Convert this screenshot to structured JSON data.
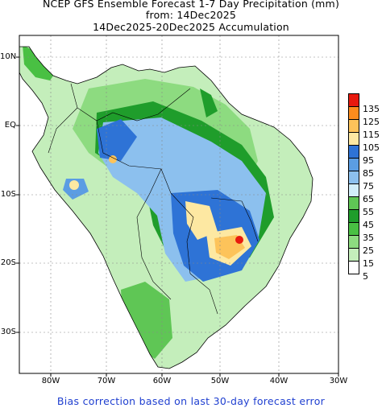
{
  "title": {
    "line1": "NCEP GFS Ensemble Forecast 1-7 Day Precipitation (mm)",
    "line2": "from: 14Dec2025",
    "line3": "14Dec2025-20Dec2025 Accumulation"
  },
  "map": {
    "lat_labels": [
      "10N",
      "EQ",
      "10S",
      "20S",
      "30S"
    ],
    "lon_labels": [
      "80W",
      "70W",
      "60W",
      "50W",
      "40W",
      "30W"
    ]
  },
  "legend": {
    "labels": [
      "135",
      "125",
      "115",
      "105",
      "95",
      "85",
      "75",
      "65",
      "55",
      "45",
      "35",
      "25",
      "15",
      "5"
    ],
    "colors": [
      "#e81a0e",
      "#fd8c1d",
      "#fdc35a",
      "#fde8a2",
      "#2e73d6",
      "#5b9de3",
      "#8cc0ee",
      "#d2eefa",
      "#5fc655",
      "#1f9d2b",
      "#49c043",
      "#8ddb80",
      "#c4eebb",
      "#ffffff"
    ]
  },
  "footer": "Bias correction based on last 30-day forecast error"
}
